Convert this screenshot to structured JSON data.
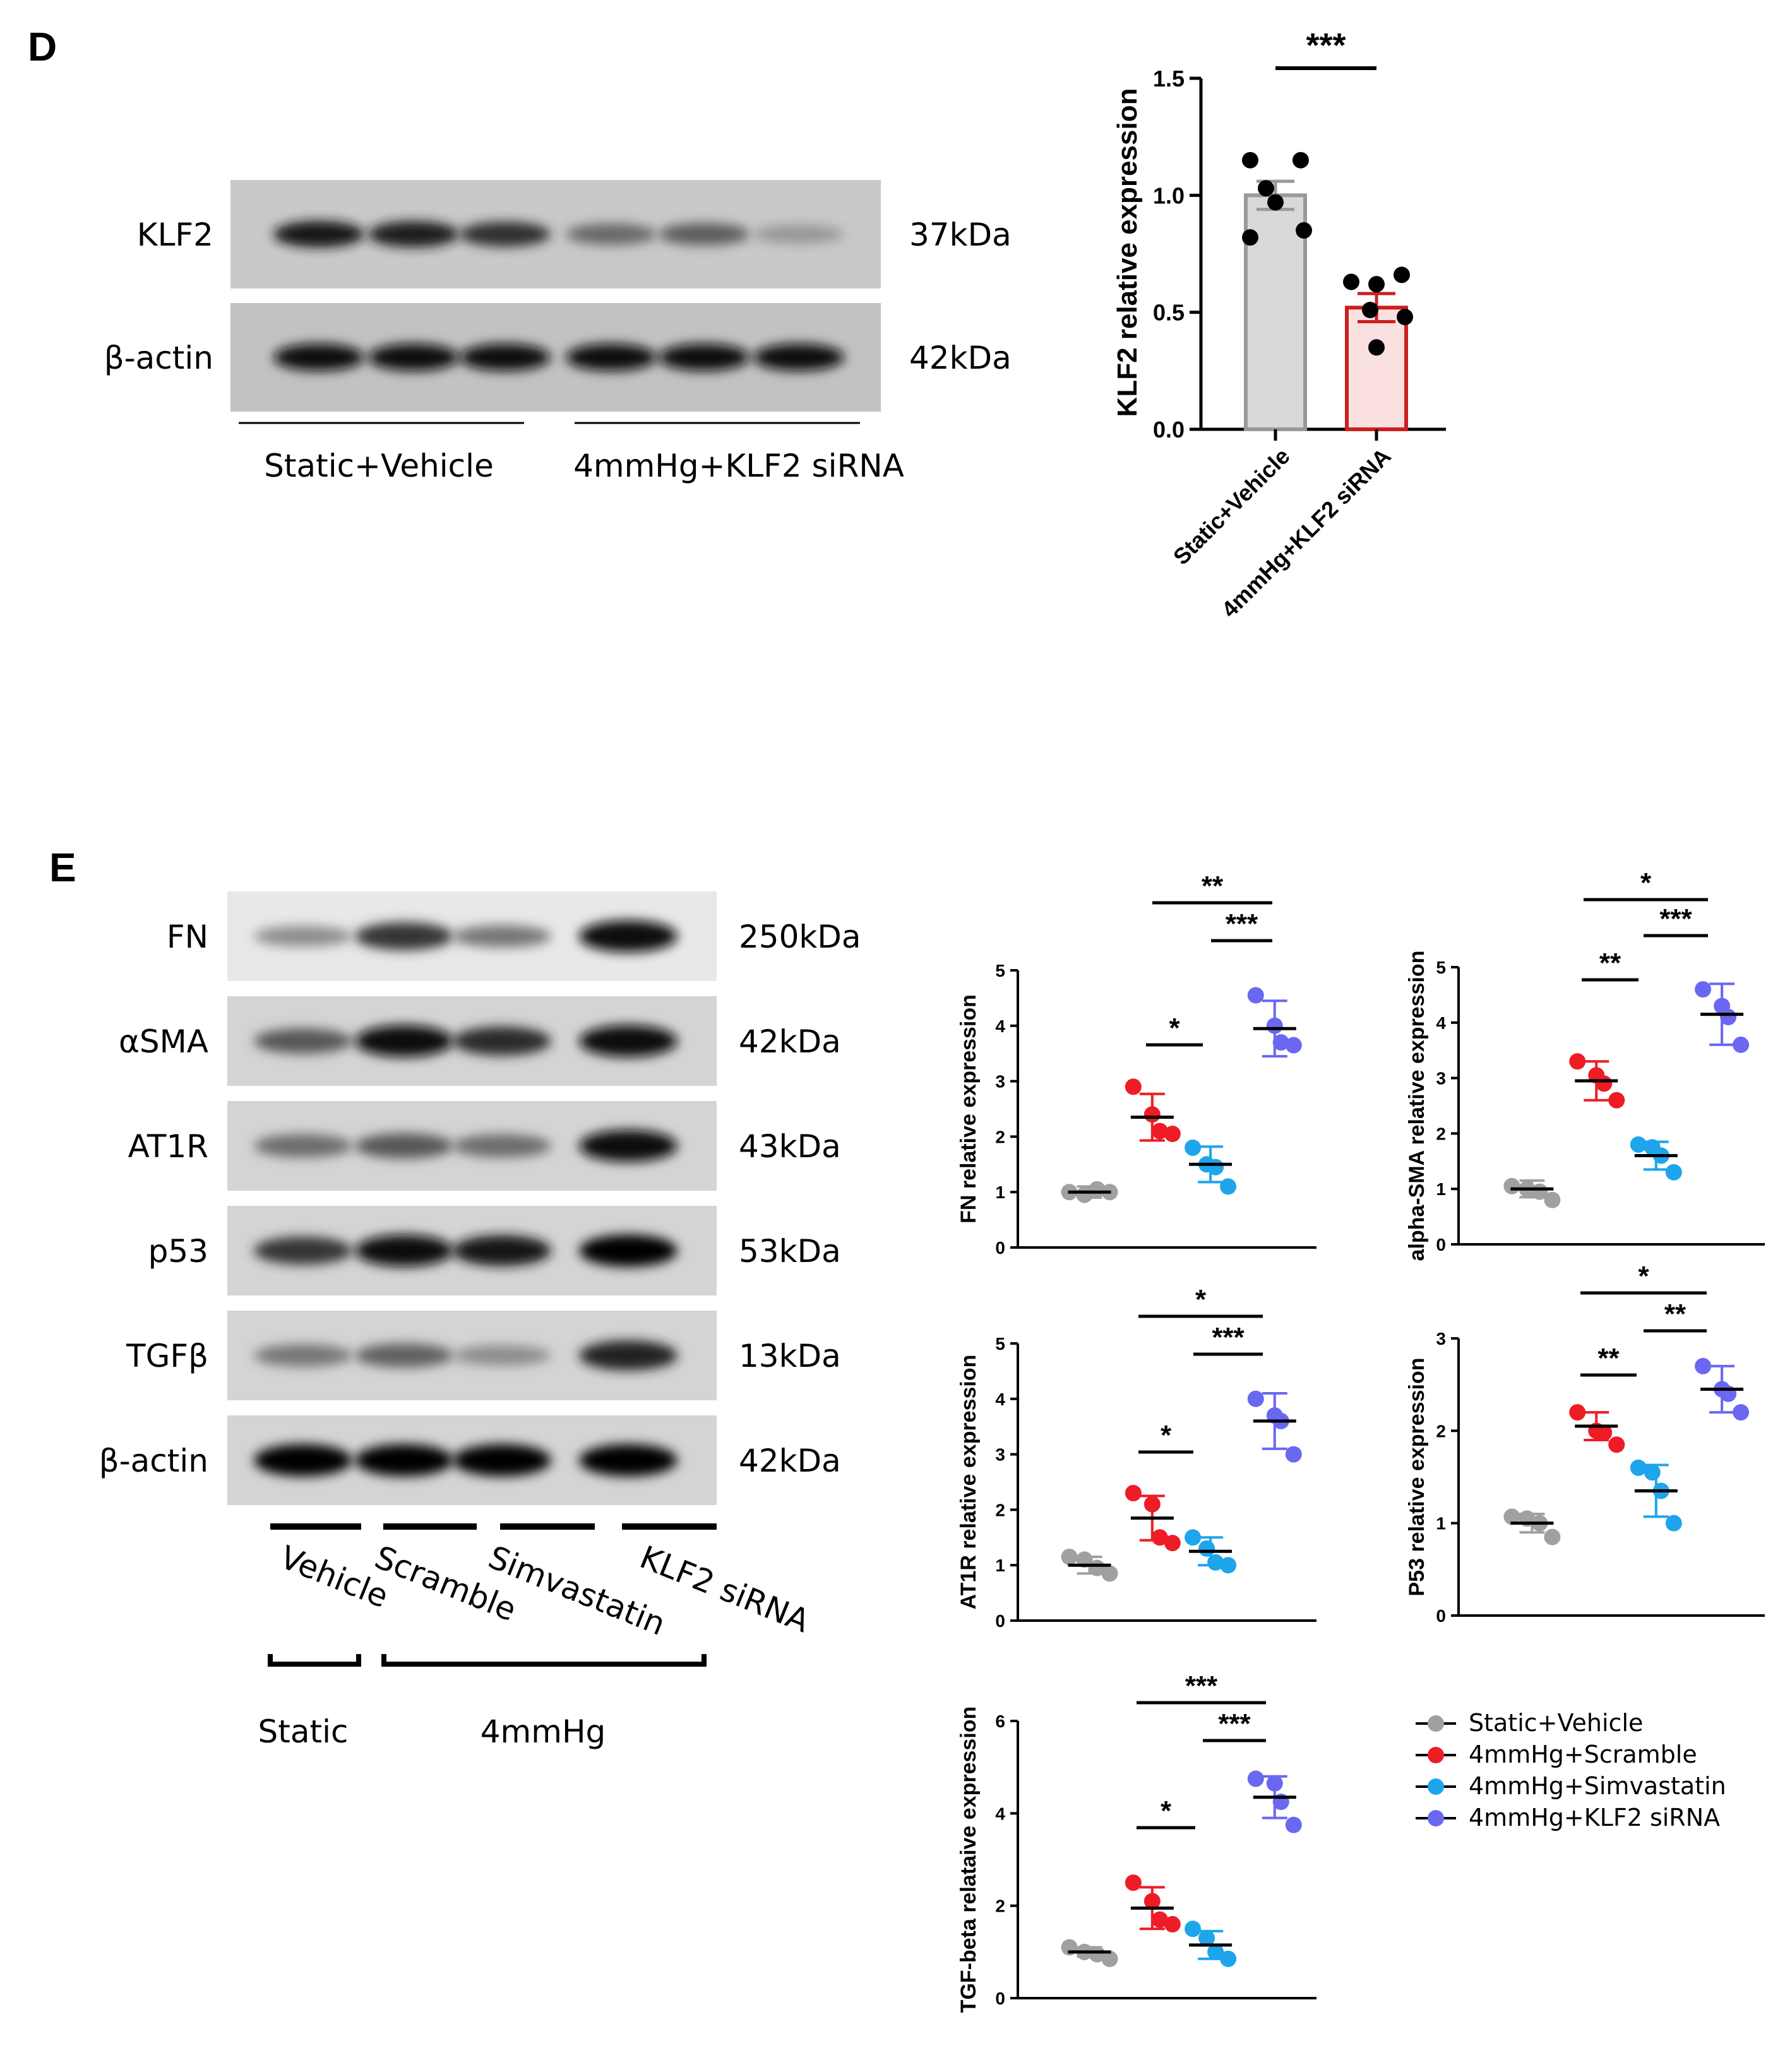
{
  "panel_d": {
    "letter": "D",
    "blot": {
      "rows": [
        {
          "protein": "KLF2",
          "kda": "37kDa",
          "band_intensity": [
            0.9,
            0.88,
            0.8,
            0.55,
            0.6,
            0.35
          ]
        },
        {
          "protein": "β-actin",
          "kda": "42kDa",
          "band_intensity": [
            0.95,
            0.95,
            0.95,
            0.95,
            0.95,
            0.95
          ]
        }
      ],
      "groups": [
        "Static+Vehicle",
        "4mmHg+KLF2 siRNA"
      ]
    }
  },
  "panel_e": {
    "letter": "E",
    "blot": {
      "rows": [
        {
          "protein": "FN",
          "kda": "250kDa",
          "band_intensity": [
            0.35,
            0.75,
            0.45,
            0.95
          ]
        },
        {
          "protein": "αSMA",
          "kda": "42kDa",
          "band_intensity": [
            0.6,
            0.95,
            0.8,
            0.95
          ]
        },
        {
          "protein": "AT1R",
          "kda": "43kDa",
          "band_intensity": [
            0.5,
            0.6,
            0.5,
            0.95
          ]
        },
        {
          "protein": "p53",
          "kda": "53kDa",
          "band_intensity": [
            0.75,
            0.95,
            0.9,
            0.97
          ]
        },
        {
          "protein": "TGFβ",
          "kda": "13kDa",
          "band_intensity": [
            0.45,
            0.55,
            0.35,
            0.85
          ]
        },
        {
          "protein": "β-actin",
          "kda": "42kDa",
          "band_intensity": [
            0.97,
            0.97,
            0.97,
            0.97
          ]
        }
      ],
      "lanes": [
        "Vehicle",
        "Scramble",
        "Simvastatin",
        "KLF2 siRNA"
      ],
      "conditions": [
        "Static",
        "4mmHg"
      ]
    },
    "legend": [
      "Static+Vehicle",
      "4mmHg+Scramble",
      "4mmHg+Simvastatin",
      "4mmHg+KLF2 siRNA"
    ]
  },
  "colors": {
    "static_vehicle": "#a0a0a0",
    "scramble": "#ee1c25",
    "simvastatin": "#1ea5ec",
    "klf2_sirna": "#6a68f0",
    "bar_static_fill": "#d9d9d9",
    "bar_static_edge": "#999999",
    "bar_klf2_fill": "#fbe0e0",
    "bar_klf2_edge": "#cc1f1f"
  },
  "chart_data": [
    {
      "type": "bar",
      "ylabel": "KLF2 relative expression",
      "categories": [
        "Static+Vehicle",
        "4mmHg+KLF2 siRNA"
      ],
      "values": [
        1.0,
        0.52
      ],
      "sem": [
        0.06,
        0.06
      ],
      "points": [
        [
          1.15,
          1.15,
          1.03,
          0.97,
          0.85,
          0.82
        ],
        [
          0.66,
          0.63,
          0.62,
          0.51,
          0.48,
          0.35
        ]
      ],
      "ylim": [
        0,
        1.5
      ],
      "yticks": [
        "0.0",
        "0.5",
        "1.0",
        "1.5"
      ],
      "significance": [
        {
          "groups": [
            0,
            1
          ],
          "label": "***"
        }
      ]
    },
    {
      "type": "scatter",
      "ylabel": "FN relative expression",
      "ylim": [
        0,
        5
      ],
      "yticks": [
        "0",
        "1",
        "2",
        "3",
        "4",
        "5"
      ],
      "groups": [
        {
          "mean": 1.0,
          "sd": 0.1,
          "points": [
            1.0,
            0.95,
            1.05,
            1.0
          ]
        },
        {
          "mean": 2.35,
          "sd": 0.42,
          "points": [
            2.9,
            2.4,
            2.1,
            2.05
          ]
        },
        {
          "mean": 1.5,
          "sd": 0.32,
          "points": [
            1.8,
            1.5,
            1.45,
            1.1
          ]
        },
        {
          "mean": 3.95,
          "sd": 0.5,
          "points": [
            4.55,
            4.0,
            3.7,
            3.65
          ]
        }
      ],
      "significance": [
        {
          "groups": [
            2,
            3
          ],
          "label": "**",
          "level": 0
        },
        {
          "groups": [
            3,
            4
          ],
          "label": "***",
          "level": 1
        },
        {
          "groups": [
            2,
            3
          ],
          "label": "*",
          "level": 2,
          "pair": [
            1,
            2
          ]
        }
      ]
    },
    {
      "type": "scatter",
      "ylabel": "alpha-SMA relative expression",
      "ylim": [
        0,
        5
      ],
      "yticks": [
        "0",
        "1",
        "2",
        "3",
        "4",
        "5"
      ],
      "groups": [
        {
          "mean": 1.0,
          "sd": 0.15,
          "points": [
            1.05,
            1.0,
            0.95,
            0.8
          ]
        },
        {
          "mean": 2.95,
          "sd": 0.35,
          "points": [
            3.3,
            3.05,
            2.9,
            2.6
          ]
        },
        {
          "mean": 1.6,
          "sd": 0.25,
          "points": [
            1.8,
            1.75,
            1.6,
            1.3
          ]
        },
        {
          "mean": 4.15,
          "sd": 0.55,
          "points": [
            4.6,
            4.3,
            4.1,
            3.6
          ]
        }
      ]
    },
    {
      "type": "scatter",
      "ylabel": "AT1R relative expression",
      "ylim": [
        0,
        5
      ],
      "yticks": [
        "0",
        "1",
        "2",
        "3",
        "4",
        "5"
      ],
      "groups": [
        {
          "mean": 1.0,
          "sd": 0.15,
          "points": [
            1.15,
            1.1,
            0.95,
            0.85
          ]
        },
        {
          "mean": 1.85,
          "sd": 0.4,
          "points": [
            2.3,
            2.1,
            1.5,
            1.4
          ]
        },
        {
          "mean": 1.25,
          "sd": 0.25,
          "points": [
            1.5,
            1.3,
            1.05,
            1.0
          ]
        },
        {
          "mean": 3.6,
          "sd": 0.5,
          "points": [
            4.0,
            3.7,
            3.6,
            3.0
          ]
        }
      ]
    },
    {
      "type": "scatter",
      "ylabel": "P53 relative expression",
      "ylim": [
        0,
        3
      ],
      "yticks": [
        "0",
        "1",
        "2",
        "3"
      ],
      "groups": [
        {
          "mean": 1.0,
          "sd": 0.1,
          "points": [
            1.07,
            1.05,
            1.0,
            0.85
          ]
        },
        {
          "mean": 2.05,
          "sd": 0.15,
          "points": [
            2.2,
            2.0,
            1.98,
            1.85
          ]
        },
        {
          "mean": 1.35,
          "sd": 0.28,
          "points": [
            1.6,
            1.55,
            1.35,
            1.0
          ]
        },
        {
          "mean": 2.45,
          "sd": 0.25,
          "points": [
            2.7,
            2.45,
            2.4,
            2.2
          ]
        }
      ]
    },
    {
      "type": "scatter",
      "ylabel": "TGF-beta relataive expression",
      "ylim": [
        0,
        6
      ],
      "yticks": [
        "0",
        "2",
        "4",
        "6"
      ],
      "groups": [
        {
          "mean": 1.0,
          "sd": 0.1,
          "points": [
            1.1,
            1.0,
            0.95,
            0.85
          ]
        },
        {
          "mean": 1.95,
          "sd": 0.45,
          "points": [
            2.5,
            2.1,
            1.7,
            1.6
          ]
        },
        {
          "mean": 1.15,
          "sd": 0.3,
          "points": [
            1.5,
            1.3,
            1.0,
            0.85
          ]
        },
        {
          "mean": 4.35,
          "sd": 0.45,
          "points": [
            4.75,
            4.65,
            4.25,
            3.75
          ]
        }
      ]
    }
  ],
  "significance_labels": [
    [
      "**",
      "***",
      "*"
    ],
    [
      "*",
      "***",
      "**"
    ],
    [
      "*",
      "***",
      "*"
    ],
    [
      "*",
      "**",
      "**"
    ],
    [
      "***",
      "***",
      "*"
    ]
  ]
}
